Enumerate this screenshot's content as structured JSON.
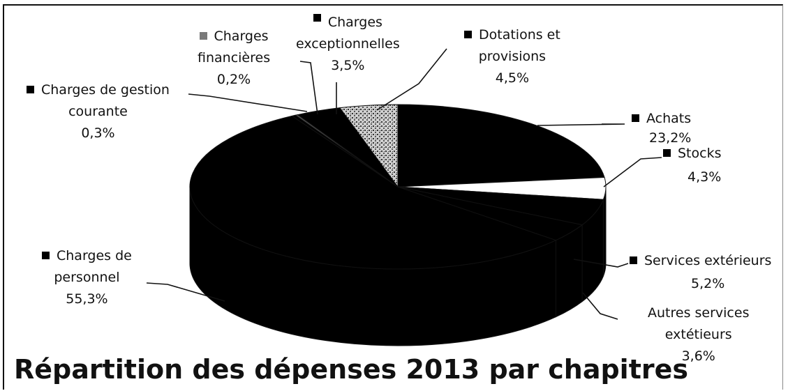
{
  "chart_data": {
    "type": "pie",
    "title": "Répartition des dépenses 2013 par chapitres",
    "slices": [
      {
        "label": "Achats",
        "label_line2": "",
        "value_label": "23,2%",
        "value": 23.2,
        "color": "#000000"
      },
      {
        "label": "Stocks",
        "label_line2": "",
        "value_label": "4,3%",
        "value": 4.3,
        "color": "#ffffff"
      },
      {
        "label": "Services extérieurs",
        "label_line2": "",
        "value_label": "5,2%",
        "value": 5.2,
        "color": "#000000"
      },
      {
        "label": "Autres services",
        "label_line2": "extétieurs",
        "value_label": "3,6%",
        "value": 3.6,
        "color": "#000000"
      },
      {
        "label": "Charges de",
        "label_line2": "personnel",
        "value_label": "55,3%",
        "value": 55.3,
        "color": "#000000"
      },
      {
        "label": "Charges de gestion",
        "label_line2": "courante",
        "value_label": "0,3%",
        "value": 0.3,
        "color": "#000000"
      },
      {
        "label": "Charges",
        "label_line2": "financières",
        "value_label": "0,2%",
        "value": 0.2,
        "color": "#555555"
      },
      {
        "label": "Charges",
        "label_line2": "exceptionnelles",
        "value_label": "3,5%",
        "value": 3.5,
        "color": "#000000"
      },
      {
        "label": "Dotations et",
        "label_line2": "provisions",
        "value_label": "4,5%",
        "value": 4.5,
        "color": "#bdbdbd"
      }
    ]
  }
}
